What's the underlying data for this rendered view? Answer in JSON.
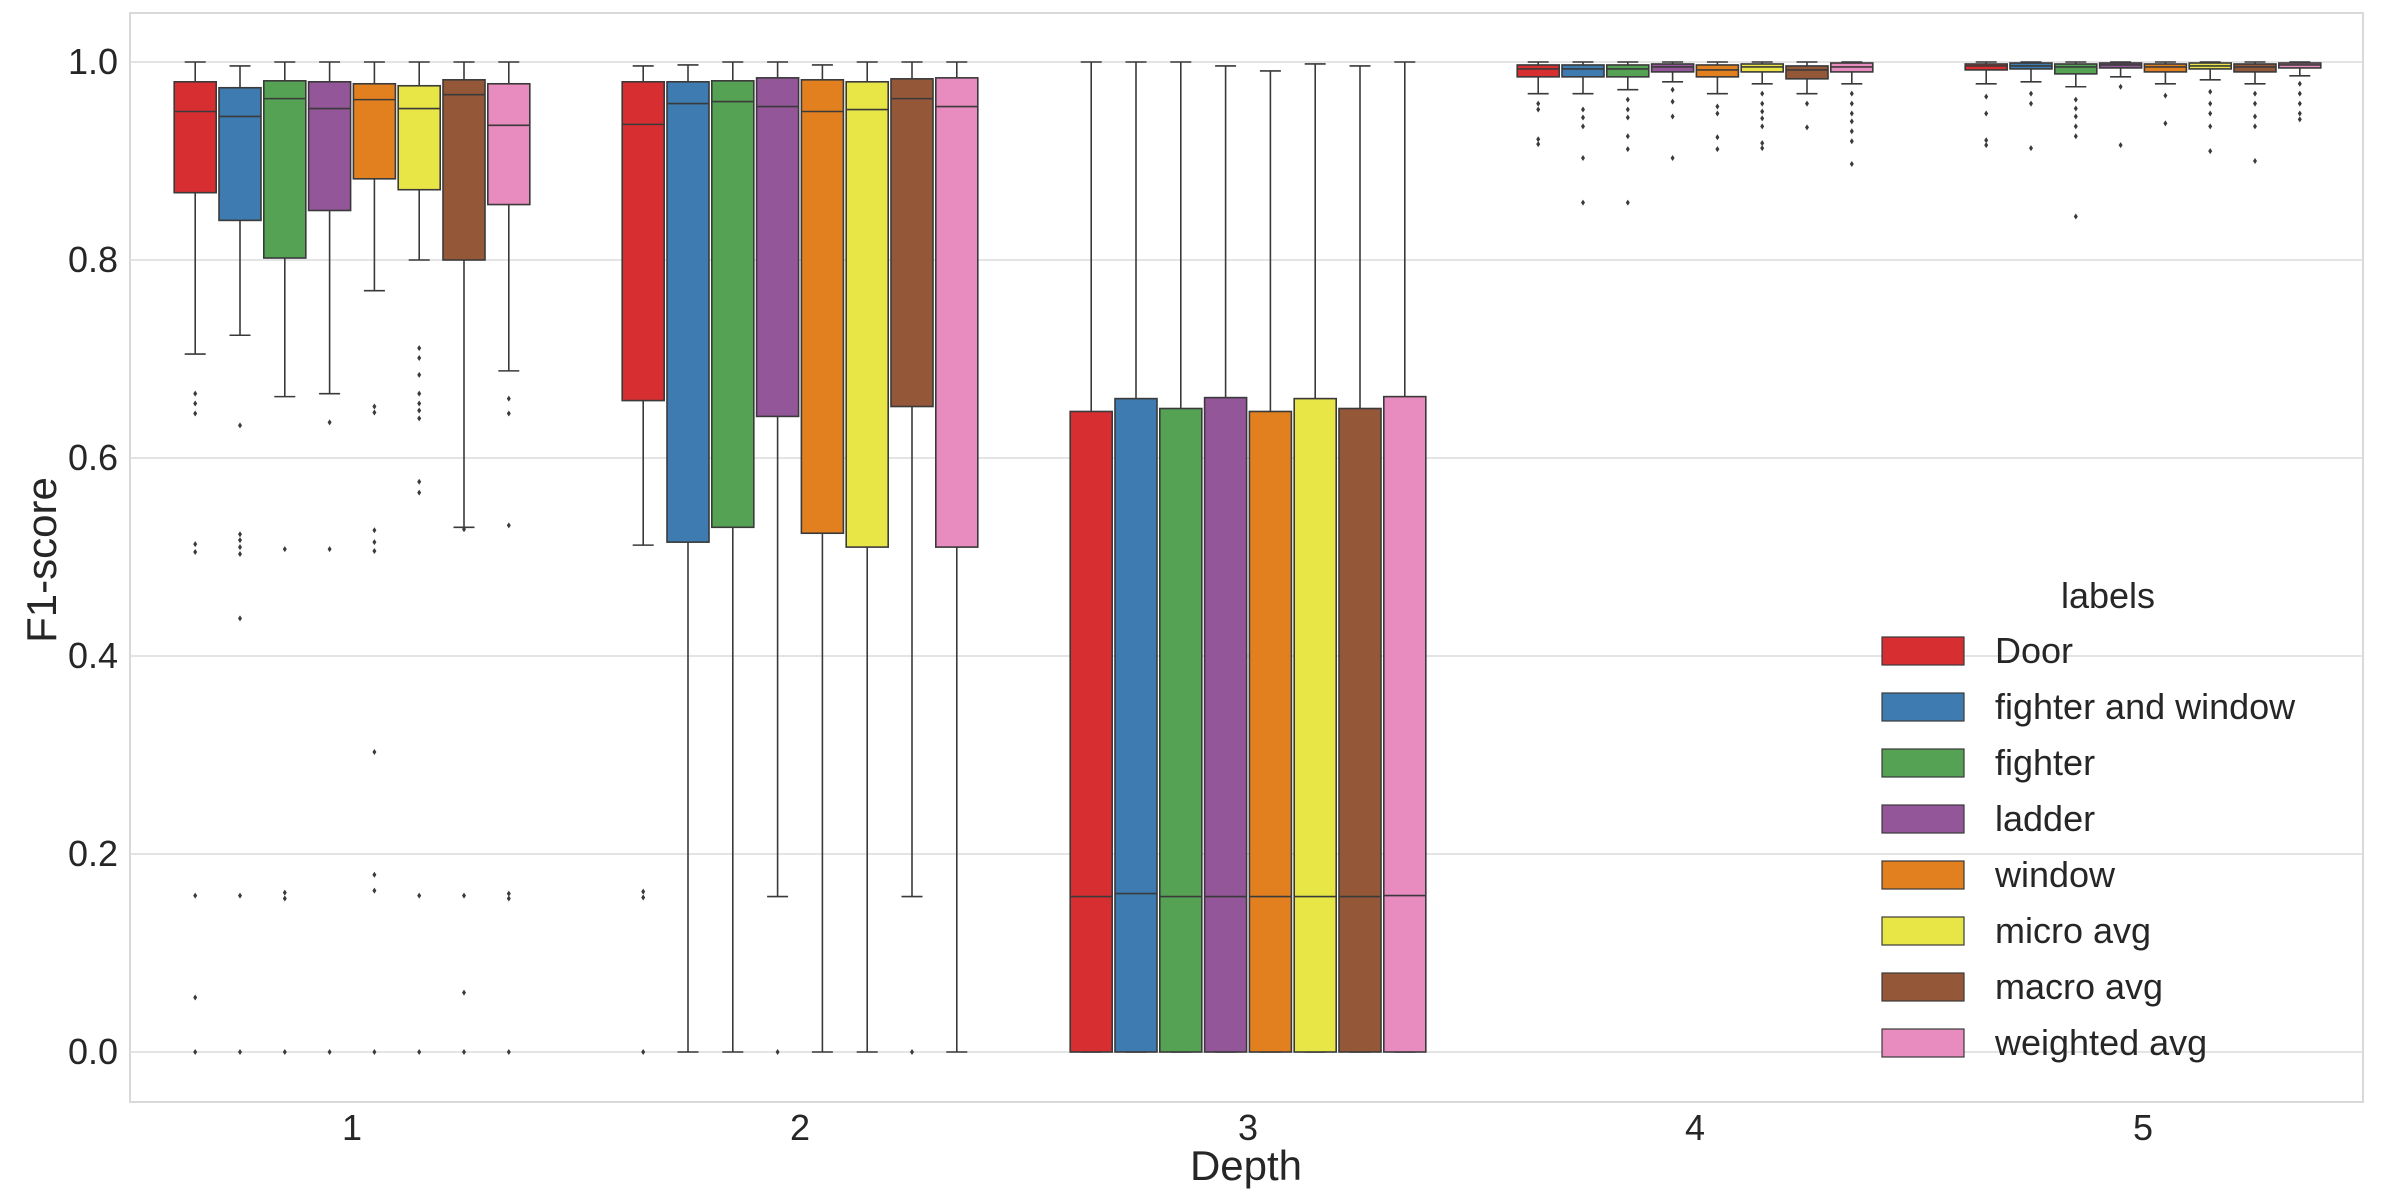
{
  "chart_data": {
    "type": "boxplot",
    "xlabel": "Depth",
    "ylabel": "F1-score",
    "ylim": [
      -0.05,
      1.05
    ],
    "yticks": [
      "0.0",
      "0.2",
      "0.4",
      "0.6",
      "0.8",
      "1.0"
    ],
    "ytick_values": [
      0.0,
      0.2,
      0.4,
      0.6,
      0.8,
      1.0
    ],
    "categories": [
      "1",
      "2",
      "3",
      "4",
      "5"
    ],
    "grid": true,
    "legend": {
      "title": "labels",
      "position": "lower-right"
    },
    "series": [
      {
        "name": "Door",
        "color": "#d62e31",
        "boxes": [
          {
            "q1": 0.868,
            "median": 0.95,
            "q3": 0.98,
            "whisker_low": 0.705,
            "whisker_high": 1.0,
            "outliers": [
              0.665,
              0.655,
              0.645,
              0.513,
              0.505,
              0.158,
              0.055,
              0.0
            ]
          },
          {
            "q1": 0.658,
            "median": 0.937,
            "q3": 0.98,
            "whisker_low": 0.512,
            "whisker_high": 0.996,
            "outliers": [
              0.162,
              0.156,
              0.0
            ]
          },
          {
            "q1": 0.0,
            "median": 0.157,
            "q3": 0.647,
            "whisker_low": 0.0,
            "whisker_high": 1.0,
            "outliers": []
          },
          {
            "q1": 0.985,
            "median": 0.993,
            "q3": 0.997,
            "whisker_low": 0.968,
            "whisker_high": 1.0,
            "outliers": [
              0.958,
              0.952,
              0.922,
              0.917
            ]
          },
          {
            "q1": 0.992,
            "median": 0.996,
            "q3": 0.998,
            "whisker_low": 0.978,
            "whisker_high": 1.0,
            "outliers": [
              0.965,
              0.948,
              0.921,
              0.916
            ]
          }
        ]
      },
      {
        "name": "fighter and window",
        "color": "#3e7bb0",
        "boxes": [
          {
            "q1": 0.84,
            "median": 0.945,
            "q3": 0.974,
            "whisker_low": 0.724,
            "whisker_high": 0.996,
            "outliers": [
              0.633,
              0.523,
              0.517,
              0.51,
              0.503,
              0.438,
              0.158,
              0.0
            ]
          },
          {
            "q1": 0.515,
            "median": 0.958,
            "q3": 0.98,
            "whisker_low": 0.0,
            "whisker_high": 0.997,
            "outliers": []
          },
          {
            "q1": 0.0,
            "median": 0.16,
            "q3": 0.66,
            "whisker_low": 0.0,
            "whisker_high": 1.0,
            "outliers": []
          },
          {
            "q1": 0.985,
            "median": 0.993,
            "q3": 0.997,
            "whisker_low": 0.968,
            "whisker_high": 1.0,
            "outliers": [
              0.952,
              0.944,
              0.935,
              0.903,
              0.858
            ]
          },
          {
            "q1": 0.993,
            "median": 0.996,
            "q3": 0.999,
            "whisker_low": 0.98,
            "whisker_high": 1.0,
            "outliers": [
              0.968,
              0.958,
              0.913
            ]
          }
        ]
      },
      {
        "name": "fighter",
        "color": "#55a255",
        "boxes": [
          {
            "q1": 0.802,
            "median": 0.963,
            "q3": 0.981,
            "whisker_low": 0.662,
            "whisker_high": 1.0,
            "outliers": [
              0.508,
              0.161,
              0.155,
              0.0
            ]
          },
          {
            "q1": 0.53,
            "median": 0.96,
            "q3": 0.981,
            "whisker_low": 0.0,
            "whisker_high": 1.0,
            "outliers": []
          },
          {
            "q1": 0.0,
            "median": 0.157,
            "q3": 0.65,
            "whisker_low": 0.0,
            "whisker_high": 1.0,
            "outliers": []
          },
          {
            "q1": 0.985,
            "median": 0.993,
            "q3": 0.997,
            "whisker_low": 0.972,
            "whisker_high": 1.0,
            "outliers": [
              0.962,
              0.952,
              0.944,
              0.925,
              0.912,
              0.858
            ]
          },
          {
            "q1": 0.988,
            "median": 0.995,
            "q3": 0.998,
            "whisker_low": 0.975,
            "whisker_high": 1.0,
            "outliers": [
              0.962,
              0.953,
              0.945,
              0.935,
              0.925,
              0.844
            ]
          }
        ]
      },
      {
        "name": "ladder",
        "color": "#935699",
        "boxes": [
          {
            "q1": 0.85,
            "median": 0.953,
            "q3": 0.98,
            "whisker_low": 0.665,
            "whisker_high": 1.0,
            "outliers": [
              0.636,
              0.508,
              0.0
            ]
          },
          {
            "q1": 0.642,
            "median": 0.955,
            "q3": 0.984,
            "whisker_low": 0.157,
            "whisker_high": 1.0,
            "outliers": [
              0.0
            ]
          },
          {
            "q1": 0.0,
            "median": 0.157,
            "q3": 0.661,
            "whisker_low": 0.0,
            "whisker_high": 0.996,
            "outliers": []
          },
          {
            "q1": 0.99,
            "median": 0.995,
            "q3": 0.998,
            "whisker_low": 0.98,
            "whisker_high": 1.0,
            "outliers": [
              0.972,
              0.96,
              0.945,
              0.903
            ]
          },
          {
            "q1": 0.994,
            "median": 0.997,
            "q3": 0.999,
            "whisker_low": 0.985,
            "whisker_high": 1.0,
            "outliers": [
              0.975,
              0.916
            ]
          }
        ]
      },
      {
        "name": "window",
        "color": "#e27f1e",
        "boxes": [
          {
            "q1": 0.882,
            "median": 0.962,
            "q3": 0.978,
            "whisker_low": 0.769,
            "whisker_high": 1.0,
            "outliers": [
              0.652,
              0.646,
              0.527,
              0.515,
              0.506,
              0.303,
              0.179,
              0.163,
              0.0
            ]
          },
          {
            "q1": 0.524,
            "median": 0.95,
            "q3": 0.982,
            "whisker_low": 0.0,
            "whisker_high": 0.997,
            "outliers": []
          },
          {
            "q1": 0.0,
            "median": 0.157,
            "q3": 0.647,
            "whisker_low": 0.0,
            "whisker_high": 0.991,
            "outliers": []
          },
          {
            "q1": 0.985,
            "median": 0.992,
            "q3": 0.997,
            "whisker_low": 0.968,
            "whisker_high": 1.0,
            "outliers": [
              0.955,
              0.948,
              0.924,
              0.912
            ]
          },
          {
            "q1": 0.99,
            "median": 0.995,
            "q3": 0.998,
            "whisker_low": 0.978,
            "whisker_high": 1.0,
            "outliers": [
              0.966,
              0.938
            ]
          }
        ]
      },
      {
        "name": "micro avg",
        "color": "#e8e646",
        "boxes": [
          {
            "q1": 0.871,
            "median": 0.953,
            "q3": 0.976,
            "whisker_low": 0.8,
            "whisker_high": 1.0,
            "outliers": [
              0.711,
              0.701,
              0.684,
              0.665,
              0.655,
              0.648,
              0.64,
              0.576,
              0.565,
              0.158,
              0.0
            ]
          },
          {
            "q1": 0.51,
            "median": 0.952,
            "q3": 0.98,
            "whisker_low": 0.0,
            "whisker_high": 1.0,
            "outliers": []
          },
          {
            "q1": 0.0,
            "median": 0.157,
            "q3": 0.66,
            "whisker_low": 0.0,
            "whisker_high": 0.998,
            "outliers": []
          },
          {
            "q1": 0.99,
            "median": 0.995,
            "q3": 0.998,
            "whisker_low": 0.978,
            "whisker_high": 1.0,
            "outliers": [
              0.968,
              0.958,
              0.95,
              0.943,
              0.935,
              0.918,
              0.913
            ]
          },
          {
            "q1": 0.993,
            "median": 0.996,
            "q3": 0.999,
            "whisker_low": 0.982,
            "whisker_high": 1.0,
            "outliers": [
              0.97,
              0.958,
              0.948,
              0.935,
              0.91
            ]
          }
        ]
      },
      {
        "name": "macro avg",
        "color": "#945738",
        "boxes": [
          {
            "q1": 0.8,
            "median": 0.967,
            "q3": 0.982,
            "whisker_low": 0.53,
            "whisker_high": 1.0,
            "outliers": [
              0.528,
              0.06,
              0.158,
              0.0
            ]
          },
          {
            "q1": 0.652,
            "median": 0.963,
            "q3": 0.983,
            "whisker_low": 0.157,
            "whisker_high": 1.0,
            "outliers": [
              0.0
            ]
          },
          {
            "q1": 0.0,
            "median": 0.157,
            "q3": 0.65,
            "whisker_low": 0.0,
            "whisker_high": 0.996,
            "outliers": []
          },
          {
            "q1": 0.983,
            "median": 0.992,
            "q3": 0.996,
            "whisker_low": 0.968,
            "whisker_high": 1.0,
            "outliers": [
              0.958,
              0.934
            ]
          },
          {
            "q1": 0.99,
            "median": 0.995,
            "q3": 0.998,
            "whisker_low": 0.978,
            "whisker_high": 1.0,
            "outliers": [
              0.968,
              0.958,
              0.945,
              0.935,
              0.9
            ]
          }
        ]
      },
      {
        "name": "weighted avg",
        "color": "#e88bbf",
        "boxes": [
          {
            "q1": 0.856,
            "median": 0.936,
            "q3": 0.978,
            "whisker_low": 0.688,
            "whisker_high": 1.0,
            "outliers": [
              0.66,
              0.645,
              0.532,
              0.16,
              0.155,
              0.0
            ]
          },
          {
            "q1": 0.51,
            "median": 0.955,
            "q3": 0.984,
            "whisker_low": 0.0,
            "whisker_high": 1.0,
            "outliers": []
          },
          {
            "q1": 0.0,
            "median": 0.158,
            "q3": 0.662,
            "whisker_low": 0.0,
            "whisker_high": 1.0,
            "outliers": []
          },
          {
            "q1": 0.99,
            "median": 0.995,
            "q3": 0.999,
            "whisker_low": 0.978,
            "whisker_high": 1.0,
            "outliers": [
              0.968,
              0.958,
              0.948,
              0.94,
              0.93,
              0.92,
              0.897
            ]
          },
          {
            "q1": 0.994,
            "median": 0.997,
            "q3": 0.999,
            "whisker_low": 0.986,
            "whisker_high": 1.0,
            "outliers": [
              0.978,
              0.968,
              0.958,
              0.948,
              0.942
            ]
          }
        ]
      }
    ]
  }
}
